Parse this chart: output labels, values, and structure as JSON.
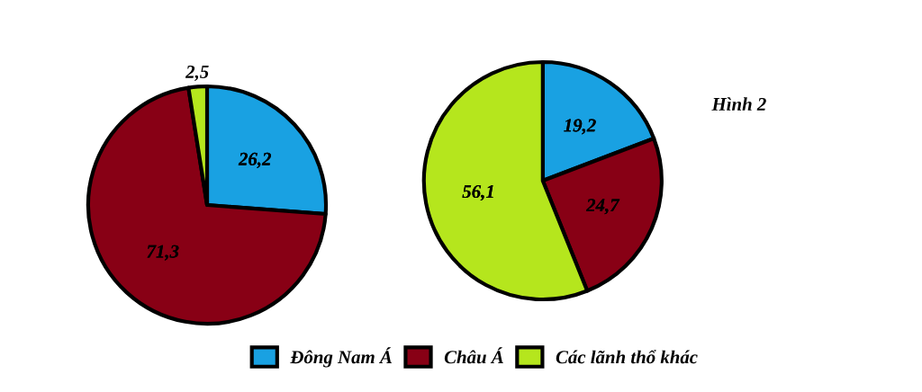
{
  "chart_data": [
    {
      "type": "pie",
      "categories": [
        "Đông Nam Á",
        "Châu Á",
        "Các lãnh thổ khác"
      ],
      "values": [
        26.2,
        71.3,
        2.5
      ],
      "colors": [
        "#19a1e2",
        "#880015",
        "#b5e61d"
      ],
      "value_labels": [
        "26,2",
        "71,3",
        "2,5"
      ],
      "legend": "bottom"
    },
    {
      "type": "pie",
      "categories": [
        null,
        null,
        null
      ],
      "values": [
        19.2,
        24.7,
        56.1
      ],
      "colors": [
        "#19a1e2",
        "#880015",
        "#b5e61d"
      ],
      "value_labels": [
        "19,2",
        "24,7",
        "56,1"
      ],
      "annotations": [
        "Hình 2"
      ]
    }
  ]
}
